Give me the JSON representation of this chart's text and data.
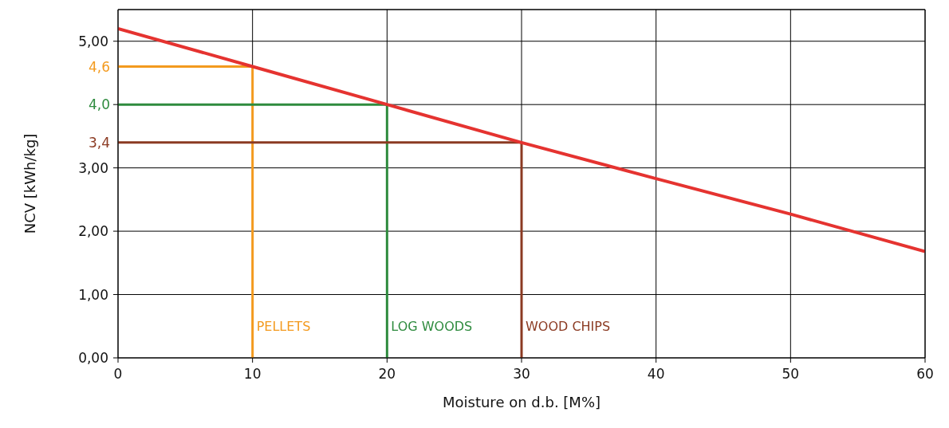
{
  "chart_data": {
    "type": "line",
    "xlabel": "Moisture on d.b. [M%]",
    "ylabel": "NCV [kWh/kg]",
    "xlim": [
      0,
      60
    ],
    "xticks": [
      0,
      10,
      20,
      30,
      40,
      50,
      60
    ],
    "ylim": [
      0,
      5.5
    ],
    "yticks": [
      {
        "value": 0,
        "label": "0,00"
      },
      {
        "value": 1,
        "label": "1,00"
      },
      {
        "value": 2,
        "label": "2,00"
      },
      {
        "value": 3,
        "label": "3,00"
      },
      {
        "value": 4,
        "label": null
      },
      {
        "value": 5,
        "label": "5,00"
      }
    ],
    "grid": true,
    "marker": "none",
    "line_style": "solid",
    "series": [
      {
        "color": "#e53330",
        "x": [
          0,
          10,
          20,
          30,
          40,
          50,
          60
        ],
        "values": [
          5.2,
          4.6,
          4.0,
          3.4,
          2.83,
          2.27,
          1.68
        ]
      },
      {
        "name": "PELLETS",
        "color": "#f39a1e",
        "x": [
          0,
          10,
          10
        ],
        "values": [
          4.6,
          4.6,
          0
        ],
        "value_labels": [
          "4,6",
          null,
          null
        ]
      },
      {
        "name": "LOG WOODS",
        "color": "#2e8b3e",
        "x": [
          0,
          20,
          20
        ],
        "values": [
          4.0,
          4.0,
          0
        ],
        "value_labels": [
          "4,0",
          null,
          null
        ]
      },
      {
        "name": "WOOD CHIPS",
        "color": "#8b3a22",
        "x": [
          0,
          30,
          30
        ],
        "values": [
          3.4,
          3.4,
          0
        ],
        "value_labels": [
          "3,4",
          null,
          null
        ]
      }
    ]
  }
}
